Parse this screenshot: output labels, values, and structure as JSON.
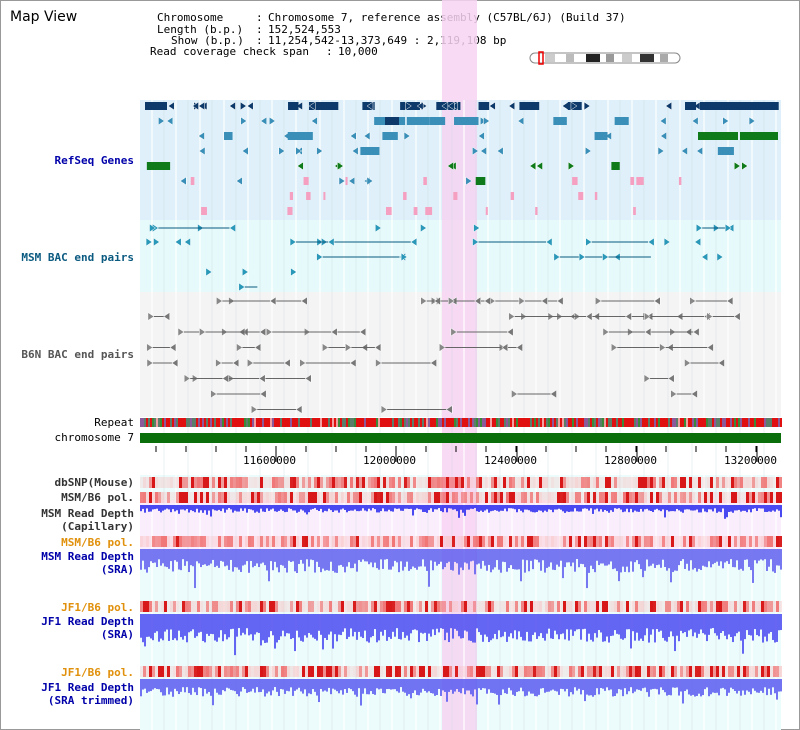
{
  "title": "Map View",
  "info": {
    "chromosome_key": "Chromosome",
    "chromosome_val": "Chromosome 7, reference assembly (C57BL/6J) (Build 37)",
    "length_key": "Length (b.p.)",
    "length_val": "152,524,553",
    "show_key": "Show (b.p.)",
    "show_val": "11,254,542-13,373,649 : 2,119,108 bp",
    "span_key": "Read coverage check span",
    "span_val": "10,000"
  },
  "tracks": {
    "refseq": "RefSeq Genes",
    "msm_bac": "MSM BAC end pairs",
    "b6n_bac": "B6N BAC end pairs",
    "repeat": "Repeat",
    "chromosome": "chromosome 7",
    "dbsnp": "dbSNP(Mouse)",
    "msm_b6_pol_1": "MSM/B6 pol.",
    "msm_depth_cap": "MSM Read Depth\n(Capillary)",
    "msm_b6_pol_2": "MSM/B6 pol.",
    "msm_depth_sra": "MSM Read Depth\n(SRA)",
    "jf1_b6_pol_1": "JF1/B6 pol.",
    "jf1_depth_sra": "JF1 Read Depth\n(SRA)",
    "jf1_b6_pol_2": "JF1/B6 pol.",
    "jf1_depth_trim": "JF1 Read Depth\n(SRA trimmed)"
  },
  "axis_ticks": [
    "11600000",
    "12000000",
    "12400000",
    "12800000",
    "13200000"
  ],
  "colors": {
    "refseq_bg": "#dff0fa",
    "msm_bac_bg": "#e6fafb",
    "b6n_bac_bg": "#f4f4f4",
    "highlight": "#f7d4f2",
    "gene_dark": "#0d3a6a",
    "gene_mid": "#3a8fb8",
    "gene_green": "#0e7a1a",
    "gene_pink": "#f5a0c0",
    "chrom_green": "#0a6e0a",
    "depth_blue": "#3b3bff",
    "pol_red": "#e03030"
  }
}
